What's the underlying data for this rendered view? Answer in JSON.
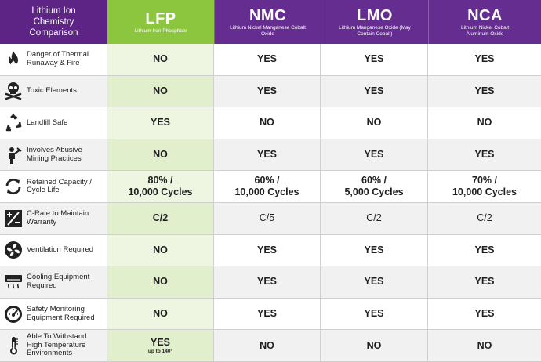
{
  "header": {
    "corner_title": "Lithium Ion Chemistry Comparison",
    "columns": [
      {
        "name": "LFP",
        "subtitle": "Lithium Iron Phosphate"
      },
      {
        "name": "NMC",
        "subtitle": "Lithium Nickel Manganese Cobalt Oxide"
      },
      {
        "name": "LMO",
        "subtitle": "Lithium Manganese Oxide (May Contain Cobalt)"
      },
      {
        "name": "NCA",
        "subtitle": "Lithium Nickel Cobalt Aluminum Oxide"
      }
    ]
  },
  "colors": {
    "lfp_green": "#8cc63f",
    "purple": "#662d91"
  },
  "rows": [
    {
      "label": "Danger of Thermal Runaway & Fire",
      "icon": "fire-icon",
      "lfp": "NO",
      "nmc": "YES",
      "lmo": "YES",
      "nca": "YES"
    },
    {
      "label": "Toxic Elements",
      "icon": "skull-crossbones-icon",
      "lfp": "NO",
      "nmc": "YES",
      "lmo": "YES",
      "nca": "YES"
    },
    {
      "label": "Landfill Safe",
      "icon": "recycle-icon",
      "lfp": "YES",
      "nmc": "NO",
      "lmo": "NO",
      "nca": "NO"
    },
    {
      "label": "Involves Abusive Mining Practices",
      "icon": "mining-worker-icon",
      "lfp": "NO",
      "nmc": "YES",
      "lmo": "YES",
      "nca": "YES"
    },
    {
      "label": "Retained Capacity / Cycle Life",
      "icon": "cycle-arrows-icon",
      "lfp": "80% / 10,000 Cycles",
      "nmc": "60% / 10,000 Cycles",
      "lmo": "60% / 5,000 Cycles",
      "nca": "70% / 10,000 Cycles"
    },
    {
      "label": "C-Rate to Maintain Warranty",
      "icon": "plus-minus-battery-icon",
      "lfp": "C/2",
      "nmc": "C/5",
      "lmo": "C/2",
      "nca": "C/2"
    },
    {
      "label": "Ventilation Required",
      "icon": "fan-icon",
      "lfp": "NO",
      "nmc": "YES",
      "lmo": "YES",
      "nca": "YES"
    },
    {
      "label": "Cooling Equipment Required",
      "icon": "air-conditioner-icon",
      "lfp": "NO",
      "nmc": "YES",
      "lmo": "YES",
      "nca": "YES"
    },
    {
      "label": "Safety Monitoring Equipment Required",
      "icon": "gauge-icon",
      "lfp": "NO",
      "nmc": "YES",
      "lmo": "YES",
      "nca": "YES"
    },
    {
      "label": "Able To Withstand High Temperature Environments",
      "icon": "thermometer-icon",
      "lfp": "YES",
      "lfp_note": "up to 140°",
      "nmc": "NO",
      "lmo": "NO",
      "nca": "NO"
    }
  ]
}
